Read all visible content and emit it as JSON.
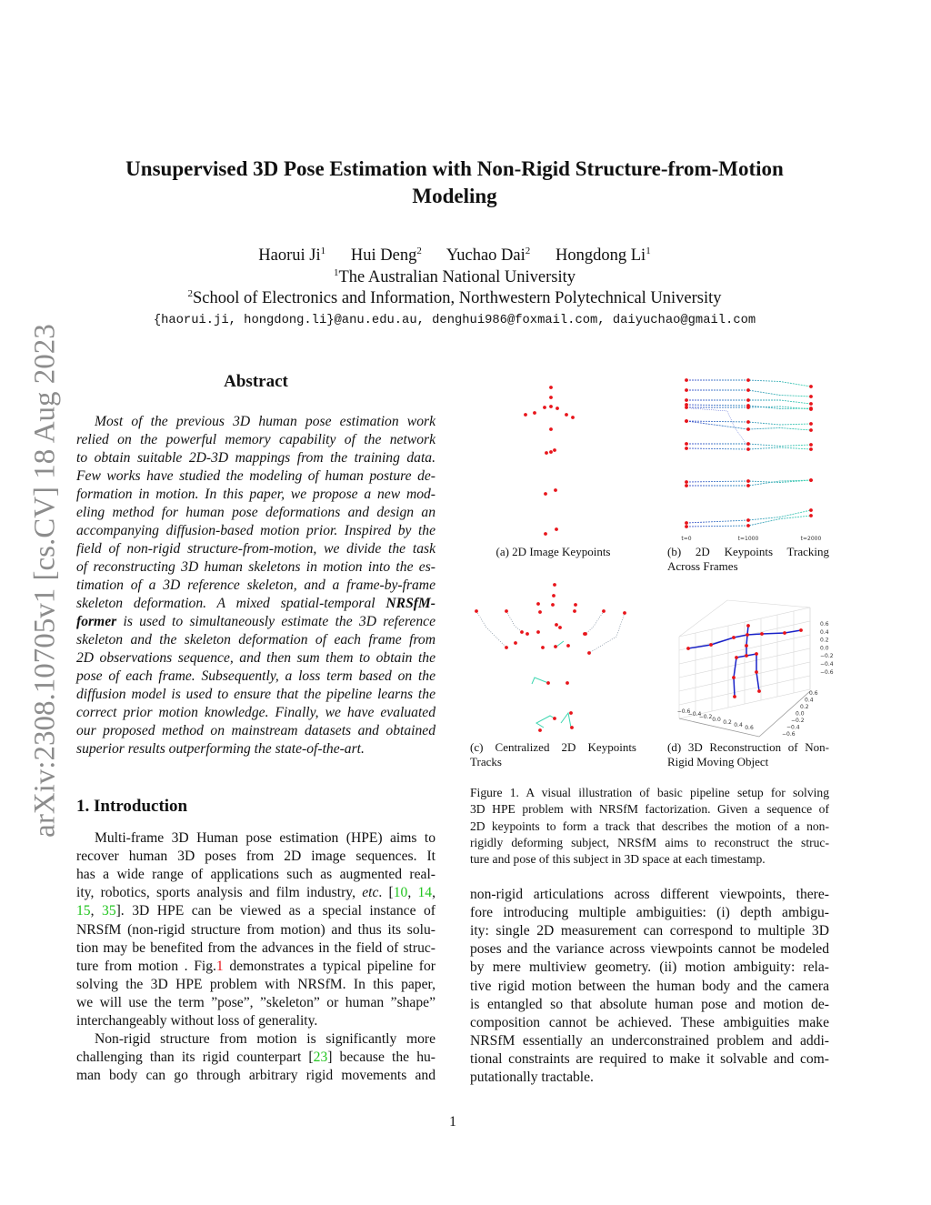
{
  "sidebar": {
    "arxiv_id": "arXiv:2308.10705v1  [cs.CV]  18 Aug 2023"
  },
  "title": {
    "line1": "Unsupervised 3D Pose Estimation with Non-Rigid Structure-from-Motion",
    "line2": "Modeling"
  },
  "authors": [
    {
      "name": "Haorui Ji",
      "aff": "1"
    },
    {
      "name": "Hui Deng",
      "aff": "2"
    },
    {
      "name": "Yuchao Dai",
      "aff": "2"
    },
    {
      "name": "Hongdong Li",
      "aff": "1"
    }
  ],
  "affiliations": [
    {
      "num": "1",
      "text": "The Australian National University"
    },
    {
      "num": "2",
      "text": "School of Electronics and Information, Northwestern Polytechnical University"
    }
  ],
  "emails": "{haorui.ji, hongdong.li}@anu.edu.au, denghui986@foxmail.com, daiyuchao@gmail.com",
  "abstract": {
    "heading": "Abstract",
    "lines": [
      [
        [
          "Most of the previous 3D human pose estimation work",
          ""
        ]
      ],
      [
        [
          "relied on the powerful memory capability of the network",
          ""
        ]
      ],
      [
        [
          "to obtain suitable 2D-3D mappings from the training data.",
          ""
        ]
      ],
      [
        [
          "Few works have studied the modeling of human posture de-",
          ""
        ]
      ],
      [
        [
          "formation in motion.  In this paper, we propose a new mod-",
          ""
        ]
      ],
      [
        [
          "eling method for human pose deformations and design an",
          ""
        ]
      ],
      [
        [
          "accompanying diffusion-based motion prior. Inspired by the",
          ""
        ]
      ],
      [
        [
          "field of non-rigid structure-from-motion, we divide the task",
          ""
        ]
      ],
      [
        [
          "of reconstructing 3D human skeletons in motion into the es-",
          ""
        ]
      ],
      [
        [
          "timation of a 3D reference skeleton, and a frame-by-frame",
          ""
        ]
      ],
      [
        [
          "skeleton deformation.  A mixed spatial-temporal ",
          ""
        ],
        [
          "NRSfM-",
          "b"
        ]
      ],
      [
        [
          "former",
          "b"
        ],
        [
          " is used to simultaneously estimate the 3D reference",
          ""
        ]
      ],
      [
        [
          "skeleton and the skeleton deformation of each frame from",
          ""
        ]
      ],
      [
        [
          "2D observations sequence, and then sum them to obtain the",
          ""
        ]
      ],
      [
        [
          "pose of each frame. Subsequently, a loss term based on the",
          ""
        ]
      ],
      [
        [
          "diffusion model is used to ensure that the pipeline learns the",
          ""
        ]
      ],
      [
        [
          "correct prior motion knowledge. Finally, we have evaluated",
          ""
        ]
      ],
      [
        [
          "our proposed method on mainstream datasets and obtained",
          ""
        ]
      ],
      [
        [
          "superior results outperforming the state-of-the-art.",
          ""
        ]
      ]
    ]
  },
  "intro": {
    "heading": "1. Introduction",
    "lines": [
      [
        [
          "Multi-frame 3D Human pose estimation (HPE) aims to",
          ""
        ]
      ],
      [
        [
          "recover human 3D poses from 2D image sequences.   It",
          ""
        ]
      ],
      [
        [
          "has a wide range of applications such as augmented real-",
          ""
        ]
      ],
      [
        [
          "ity, robotics, sports analysis and film industry, ",
          ""
        ],
        [
          "etc",
          "it"
        ],
        [
          ". [",
          ""
        ],
        [
          "10",
          "cite"
        ],
        [
          ", ",
          ""
        ],
        [
          "14",
          "cite"
        ],
        [
          ",",
          ""
        ]
      ],
      [
        [
          "15",
          "cite"
        ],
        [
          ", ",
          ""
        ],
        [
          "35",
          "cite"
        ],
        [
          "].  3D HPE can be viewed as a special instance of",
          ""
        ]
      ],
      [
        [
          "NRSfM (non-rigid structure from motion) and thus its solu-",
          ""
        ]
      ],
      [
        [
          "tion may be benefited from the advances in the field of struc-",
          ""
        ]
      ],
      [
        [
          "ture from motion . Fig.",
          ""
        ],
        [
          "1",
          "ref"
        ],
        [
          " demonstrates a typical pipeline for",
          ""
        ]
      ],
      [
        [
          "solving the 3D HPE problem with NRSfM. In this paper,",
          ""
        ]
      ],
      [
        [
          "we will use the term ”pose”, ”skeleton” or human ”shape”",
          ""
        ]
      ],
      [
        [
          "interchangeably without loss of generality.",
          ""
        ]
      ],
      [
        [
          "Non-rigid structure from motion is significantly more",
          ""
        ]
      ],
      [
        [
          "challenging than its rigid counterpart [",
          ""
        ],
        [
          "23",
          "cite"
        ],
        [
          "] because the hu-",
          ""
        ]
      ],
      [
        [
          "man body can go through arbitrary rigid movements and",
          ""
        ]
      ]
    ]
  },
  "figure": {
    "panels": {
      "a": [
        "(a) 2D Image Keypoints"
      ],
      "b": [
        "(b)   2D   Keypoints   Tracking",
        "Across Frames"
      ],
      "c": [
        "(c)   Centralized   2D   Keypoints",
        "Tracks"
      ],
      "d": [
        "(d)  3D  Reconstruction  of  Non-",
        "Rigid Moving Object"
      ]
    },
    "b_ticks": [
      "t=0",
      "t=1000",
      "t=2000"
    ],
    "d_z_ticks": [
      "0.6",
      "0.4",
      "0.2",
      "0.0",
      "−0.2",
      "−0.4",
      "−0.6"
    ],
    "d_x_ticks": [
      "−0.6",
      "−0.4",
      "−0.2",
      "0.0",
      "0.2",
      "0.4",
      "0.6"
    ],
    "d_y_ticks": [
      "0.6",
      "0.4",
      "0.2",
      "0.0",
      "−0.2",
      "−0.4",
      "−0.6"
    ],
    "colors": {
      "keypoint": "#e8141a",
      "skeleton": "#1a22c8",
      "track_start": "#4a5cd0",
      "track_end": "#3dd6b0"
    },
    "caption": [
      [
        [
          "Figure 1.  A visual illustration of basic pipeline setup for solving",
          ""
        ]
      ],
      [
        [
          "3D HPE problem with NRSfM factorization. Given a sequence of",
          ""
        ]
      ],
      [
        [
          "2D keypoints to form a track that describes the motion of a non-",
          ""
        ]
      ],
      [
        [
          "rigidly deforming subject, NRSfM aims to reconstruct the struc-",
          ""
        ]
      ],
      [
        [
          "ture and pose of this subject in 3D space at each timestamp.",
          ""
        ]
      ]
    ]
  },
  "right_text": {
    "lines": [
      [
        [
          "non-rigid articulations across different viewpoints, there-",
          ""
        ]
      ],
      [
        [
          "fore introducing multiple ambiguities:  (i) depth ambigu-",
          ""
        ]
      ],
      [
        [
          "ity: single 2D measurement can correspond to multiple 3D",
          ""
        ]
      ],
      [
        [
          "poses and the variance across viewpoints cannot be modeled",
          ""
        ]
      ],
      [
        [
          "by mere multiview geometry.  (ii) motion ambiguity: rela-",
          ""
        ]
      ],
      [
        [
          "tive rigid motion between the human body and the camera",
          ""
        ]
      ],
      [
        [
          "is entangled so that absolute human pose and motion de-",
          ""
        ]
      ],
      [
        [
          "composition cannot be achieved.  These ambiguities make",
          ""
        ]
      ],
      [
        [
          "NRSfM essentially an underconstrained problem and addi-",
          ""
        ]
      ],
      [
        [
          "tional constraints are required to make it solvable and com-",
          ""
        ]
      ],
      [
        [
          "putationally tractable.",
          ""
        ]
      ]
    ]
  },
  "page_number": "1"
}
